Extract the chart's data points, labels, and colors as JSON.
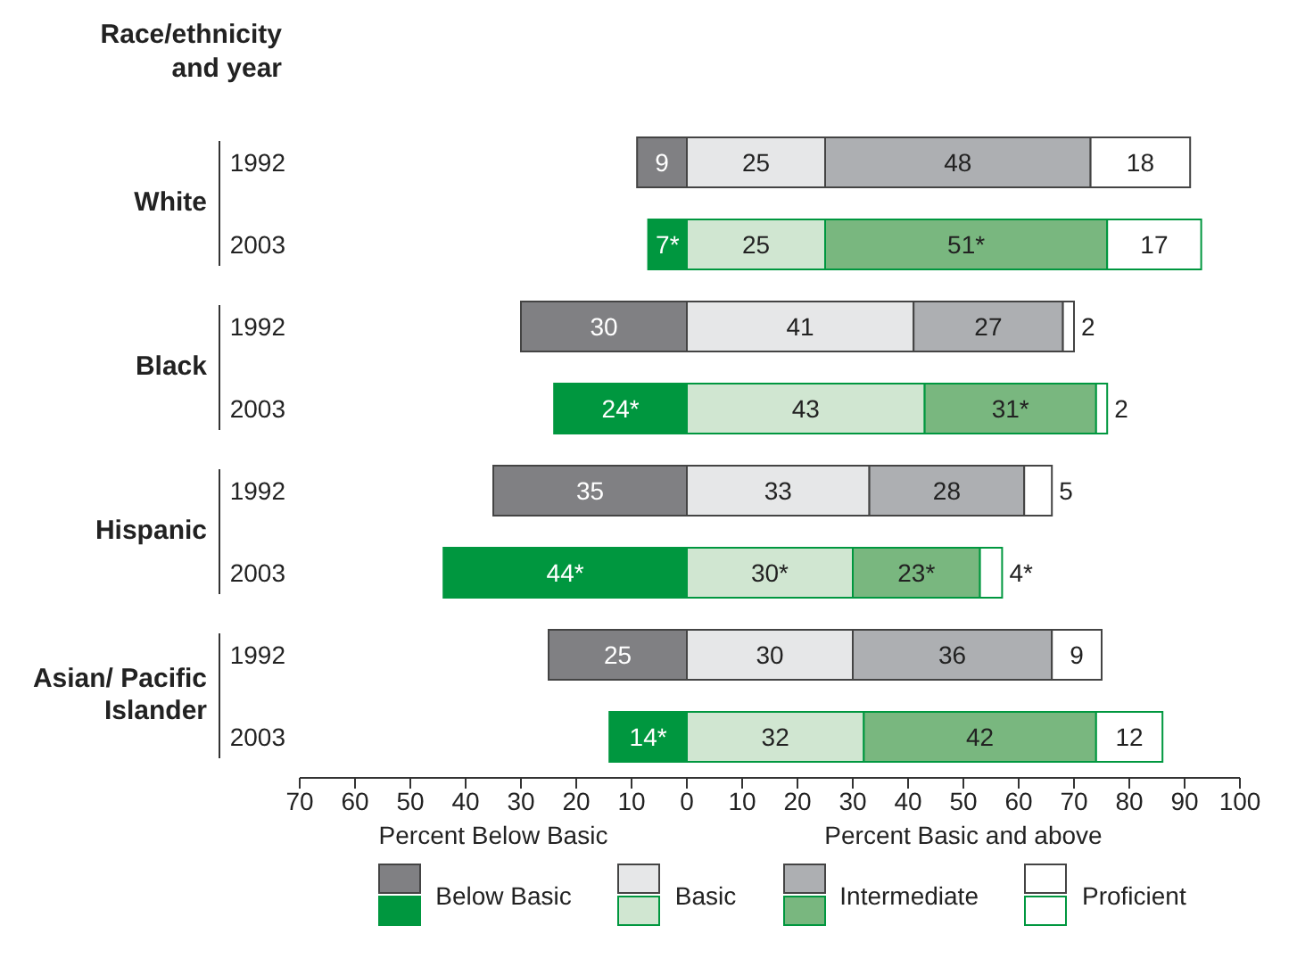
{
  "chart_data": [
    {
      "type": "bar",
      "orientation": "horizontal",
      "ylabel": "Race/ethnicity and year",
      "xlabel": "Percent Below Basic",
      "categories": [
        "1992",
        "2003",
        "1992",
        "2003",
        "1992",
        "2003",
        "1992",
        "2003"
      ],
      "annotations": [
        "White",
        "Black",
        "Hispanic",
        "Asian/ Pacific Islander"
      ],
      "series": [
        {
          "name": "Below Basic",
          "colors": [
            "#808083",
            "#00973f",
            "#808083",
            "#00973f",
            "#808083",
            "#00973f",
            "#808083",
            "#00973f"
          ],
          "values": [
            9,
            7,
            30,
            24,
            35,
            44,
            25,
            14
          ],
          "value_labels": [
            "9",
            "7*",
            "30",
            "24*",
            "35",
            "44*",
            "25",
            "14*"
          ]
        }
      ],
      "xlim": [
        70,
        0
      ],
      "xticks": [
        70,
        60,
        50,
        40,
        30,
        20,
        10
      ],
      "legend": "bottom"
    },
    {
      "type": "bar",
      "orientation": "horizontal",
      "stacked": true,
      "xlabel": "Percent Basic and above",
      "categories": [
        "1992",
        "2003",
        "1992",
        "2003",
        "1992",
        "2003",
        "1992",
        "2003"
      ],
      "tick_labels": "x",
      "series": [
        {
          "name": "Basic",
          "colors": [
            "#e6e7e8",
            "#d0e6d1",
            "#e6e7e8",
            "#d0e6d1",
            "#e6e7e8",
            "#d0e6d1",
            "#e6e7e8",
            "#d0e6d1"
          ],
          "values": [
            25,
            25,
            41,
            43,
            33,
            30,
            30,
            32
          ],
          "value_labels": [
            "25",
            "25",
            "41",
            "43",
            "33",
            "30*",
            "30",
            "32"
          ]
        },
        {
          "name": "Intermediate",
          "colors": [
            "#adafb2",
            "#79b77f",
            "#adafb2",
            "#79b77f",
            "#adafb2",
            "#79b77f",
            "#adafb2",
            "#79b77f"
          ],
          "values": [
            48,
            51,
            27,
            31,
            28,
            23,
            36,
            42
          ],
          "value_labels": [
            "48",
            "51*",
            "27",
            "31*",
            "28",
            "23*",
            "36",
            "42"
          ]
        },
        {
          "name": "Proficient",
          "colors": [
            "#ffffff",
            "#ffffff",
            "#ffffff",
            "#ffffff",
            "#ffffff",
            "#ffffff",
            "#ffffff",
            "#ffffff"
          ],
          "values": [
            18,
            17,
            2,
            2,
            5,
            4,
            9,
            12
          ],
          "value_labels": [
            "18",
            "17",
            "2",
            "2",
            "5",
            "4*",
            "9",
            "12"
          ]
        }
      ],
      "xlim": [
        0,
        100
      ],
      "xticks": [
        0,
        10,
        20,
        30,
        40,
        50,
        60,
        70,
        80,
        90,
        100
      ],
      "legend": "bottom"
    }
  ]
}
